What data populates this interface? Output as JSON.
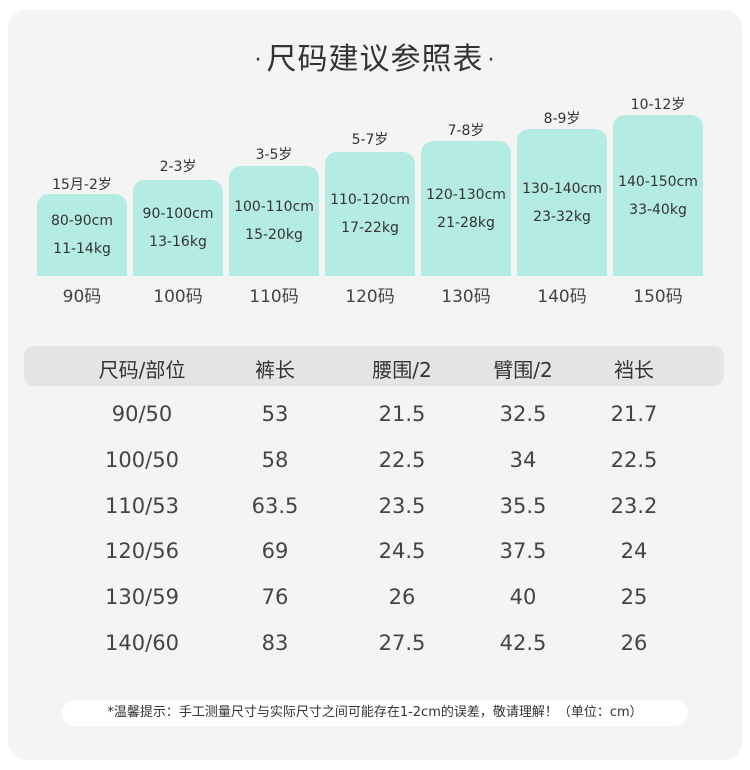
{
  "title": "尺码建议参照表",
  "title_dot": "·",
  "bar_color": "#b4ece3",
  "sizes": [
    {
      "age": "15月-2岁",
      "height": "80-90cm",
      "weight": "11-14kg",
      "size": "90码"
    },
    {
      "age": "2-3岁",
      "height": "90-100cm",
      "weight": "13-16kg",
      "size": "100码"
    },
    {
      "age": "3-5岁",
      "height": "100-110cm",
      "weight": "15-20kg",
      "size": "110码"
    },
    {
      "age": "5-7岁",
      "height": "110-120cm",
      "weight": "17-22kg",
      "size": "120码"
    },
    {
      "age": "7-8岁",
      "height": "120-130cm",
      "weight": "21-28kg",
      "size": "130码"
    },
    {
      "age": "8-9岁",
      "height": "130-140cm",
      "weight": "23-32kg",
      "size": "140码"
    },
    {
      "age": "10-12岁",
      "height": "140-150cm",
      "weight": "33-40kg",
      "size": "150码"
    }
  ],
  "table": {
    "headers": [
      "尺码/部位",
      "裤长",
      "腰围/2",
      "臂围/2",
      "裆长"
    ],
    "rows": [
      [
        "90/50",
        "53",
        "21.5",
        "32.5",
        "21.7"
      ],
      [
        "100/50",
        "58",
        "22.5",
        "34",
        "22.5"
      ],
      [
        "110/53",
        "63.5",
        "23.5",
        "35.5",
        "23.2"
      ],
      [
        "120/56",
        "69",
        "24.5",
        "37.5",
        "24"
      ],
      [
        "130/59",
        "76",
        "26",
        "40",
        "25"
      ],
      [
        "140/60",
        "83",
        "27.5",
        "42.5",
        "26"
      ]
    ]
  },
  "note": "*温馨提示：手工测量尺寸与实际尺寸之间可能存在1-2cm的误差，敬请理解！（单位：cm）"
}
